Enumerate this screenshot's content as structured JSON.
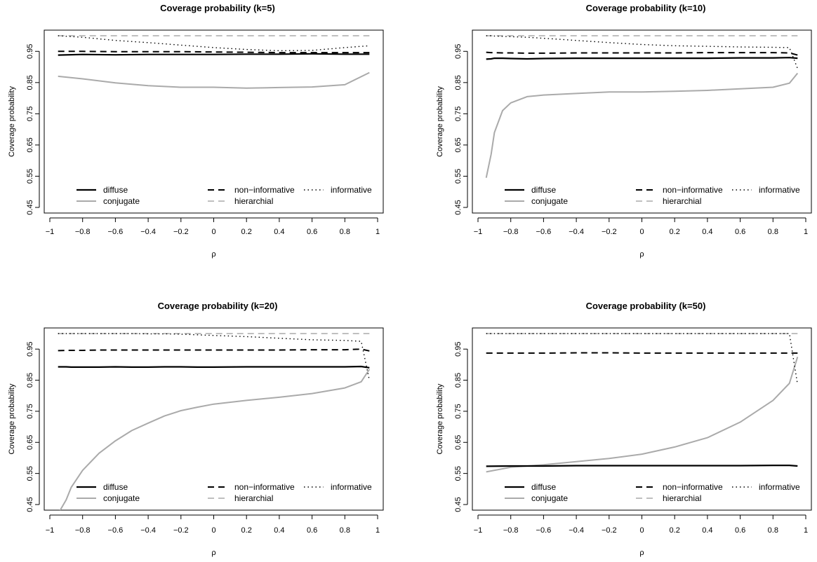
{
  "figure": {
    "background": "#ffffff"
  },
  "chart_data": [
    {
      "type": "line",
      "title": "Coverage probability (k=5)",
      "xlabel": "ρ",
      "ylabel": "Coverage probability",
      "xlim": [
        -1,
        1
      ],
      "ylim": [
        0.45,
        1.0
      ],
      "xticks": [
        "-1",
        "-0.8",
        "-0.6",
        "-0.4",
        "-0.2",
        "0",
        "0.2",
        "0.4",
        "0.6",
        "0.8",
        "1"
      ],
      "yticks": [
        "0.45",
        "0.55",
        "0.65",
        "0.75",
        "0.85",
        "0.95"
      ],
      "x": [
        -0.95,
        -0.8,
        -0.6,
        -0.4,
        -0.2,
        0,
        0.2,
        0.4,
        0.6,
        0.8,
        0.95
      ],
      "grid": false,
      "legend_position": "bottom-left",
      "series": [
        {
          "name": "diffuse",
          "style": "solid",
          "color": "#000000",
          "width": 2.2,
          "values": [
            0.938,
            0.94,
            0.939,
            0.94,
            0.94,
            0.94,
            0.941,
            0.941,
            0.942,
            0.941,
            0.941
          ]
        },
        {
          "name": "non−informative",
          "style": "dashed",
          "color": "#000000",
          "width": 2.0,
          "values": [
            0.95,
            0.95,
            0.949,
            0.949,
            0.949,
            0.948,
            0.947,
            0.946,
            0.946,
            0.946,
            0.946
          ]
        },
        {
          "name": "informative",
          "style": "dotted",
          "color": "#000000",
          "width": 1.4,
          "values": [
            1.0,
            0.995,
            0.985,
            0.978,
            0.97,
            0.962,
            0.956,
            0.952,
            0.953,
            0.962,
            0.968
          ]
        },
        {
          "name": "conjugate",
          "style": "solid",
          "color": "#aaaaaa",
          "width": 2.0,
          "values": [
            0.87,
            0.862,
            0.849,
            0.84,
            0.835,
            0.835,
            0.832,
            0.834,
            0.836,
            0.843,
            0.882
          ]
        },
        {
          "name": "hierarchial",
          "style": "dashed",
          "color": "#aaaaaa",
          "width": 1.6,
          "values": [
            1.0,
            1.0,
            1.0,
            1.0,
            1.0,
            1.0,
            1.0,
            1.0,
            1.0,
            1.0,
            1.0
          ]
        }
      ]
    },
    {
      "type": "line",
      "title": "Coverage probability (k=10)",
      "xlabel": "ρ",
      "ylabel": "Coverage probability",
      "xlim": [
        -1,
        1
      ],
      "ylim": [
        0.45,
        1.0
      ],
      "xticks": [
        "-1",
        "-0.8",
        "-0.6",
        "-0.4",
        "-0.2",
        "0",
        "0.2",
        "0.4",
        "0.6",
        "0.8",
        "1"
      ],
      "yticks": [
        "0.45",
        "0.55",
        "0.65",
        "0.75",
        "0.85",
        "0.95"
      ],
      "x": [
        -0.95,
        -0.92,
        -0.9,
        -0.85,
        -0.8,
        -0.7,
        -0.6,
        -0.4,
        -0.2,
        0,
        0.2,
        0.4,
        0.6,
        0.8,
        0.9,
        0.95
      ],
      "grid": false,
      "legend_position": "bottom-left",
      "series": [
        {
          "name": "diffuse",
          "style": "solid",
          "color": "#000000",
          "width": 2.2,
          "values": [
            0.925,
            0.926,
            0.928,
            0.928,
            0.927,
            0.926,
            0.927,
            0.928,
            0.928,
            0.928,
            0.928,
            0.928,
            0.929,
            0.929,
            0.93,
            0.928
          ]
        },
        {
          "name": "non−informative",
          "style": "dashed",
          "color": "#000000",
          "width": 2.0,
          "values": [
            0.947,
            0.946,
            0.946,
            0.945,
            0.945,
            0.944,
            0.944,
            0.945,
            0.945,
            0.945,
            0.945,
            0.946,
            0.946,
            0.946,
            0.945,
            0.938
          ]
        },
        {
          "name": "informative",
          "style": "dotted",
          "color": "#000000",
          "width": 1.4,
          "values": [
            1.0,
            1.0,
            0.999,
            0.998,
            0.997,
            0.995,
            0.992,
            0.985,
            0.978,
            0.972,
            0.968,
            0.966,
            0.964,
            0.963,
            0.962,
            0.895
          ]
        },
        {
          "name": "conjugate",
          "style": "solid",
          "color": "#aaaaaa",
          "width": 2.0,
          "values": [
            0.545,
            0.62,
            0.69,
            0.76,
            0.785,
            0.805,
            0.81,
            0.815,
            0.82,
            0.82,
            0.822,
            0.825,
            0.83,
            0.835,
            0.848,
            0.88
          ]
        },
        {
          "name": "hierarchial",
          "style": "dashed",
          "color": "#aaaaaa",
          "width": 1.6,
          "values": [
            1.0,
            1.0,
            1.0,
            1.0,
            1.0,
            1.0,
            1.0,
            1.0,
            1.0,
            1.0,
            1.0,
            1.0,
            1.0,
            1.0,
            1.0,
            1.0
          ]
        }
      ]
    },
    {
      "type": "line",
      "title": "Coverage probability (k=20)",
      "xlabel": "ρ",
      "ylabel": "Coverage probability",
      "xlim": [
        -1,
        1
      ],
      "ylim": [
        0.45,
        1.0
      ],
      "xticks": [
        "-1",
        "-0.8",
        "-0.6",
        "-0.4",
        "-0.2",
        "0",
        "0.2",
        "0.4",
        "0.6",
        "0.8",
        "1"
      ],
      "yticks": [
        "0.45",
        "0.55",
        "0.65",
        "0.75",
        "0.85",
        "0.95"
      ],
      "x": [
        -0.95,
        -0.9,
        -0.87,
        -0.8,
        -0.7,
        -0.6,
        -0.5,
        -0.4,
        -0.3,
        -0.2,
        -0.1,
        0,
        0.2,
        0.4,
        0.6,
        0.8,
        0.9,
        0.95
      ],
      "grid": false,
      "legend_position": "bottom-left",
      "series": [
        {
          "name": "diffuse",
          "style": "solid",
          "color": "#000000",
          "width": 2.2,
          "values": [
            0.893,
            0.893,
            0.892,
            0.892,
            0.892,
            0.893,
            0.892,
            0.892,
            0.893,
            0.893,
            0.892,
            0.892,
            0.893,
            0.893,
            0.893,
            0.893,
            0.894,
            0.89
          ]
        },
        {
          "name": "non−informative",
          "style": "dashed",
          "color": "#000000",
          "width": 2.0,
          "values": [
            0.945,
            0.946,
            0.946,
            0.946,
            0.947,
            0.947,
            0.947,
            0.947,
            0.947,
            0.947,
            0.947,
            0.947,
            0.947,
            0.947,
            0.948,
            0.948,
            0.95,
            0.944
          ]
        },
        {
          "name": "informative",
          "style": "dotted",
          "color": "#000000",
          "width": 1.4,
          "values": [
            1.0,
            1.0,
            1.0,
            1.0,
            1.0,
            1.0,
            1.0,
            0.999,
            0.999,
            0.998,
            0.996,
            0.994,
            0.99,
            0.985,
            0.98,
            0.978,
            0.975,
            0.85
          ]
        },
        {
          "name": "conjugate",
          "style": "solid",
          "color": "#aaaaaa",
          "width": 2.0,
          "values": [
            0.42,
            0.465,
            0.505,
            0.56,
            0.615,
            0.655,
            0.688,
            0.712,
            0.735,
            0.752,
            0.763,
            0.773,
            0.785,
            0.795,
            0.807,
            0.825,
            0.845,
            0.885
          ]
        },
        {
          "name": "hierarchial",
          "style": "dashed",
          "color": "#aaaaaa",
          "width": 1.6,
          "values": [
            1.0,
            1.0,
            1.0,
            1.0,
            1.0,
            1.0,
            1.0,
            1.0,
            1.0,
            1.0,
            1.0,
            1.0,
            1.0,
            1.0,
            1.0,
            1.0,
            1.0,
            1.0
          ]
        }
      ]
    },
    {
      "type": "line",
      "title": "Coverage probability (k=50)",
      "xlabel": "ρ",
      "ylabel": "Coverage probability",
      "xlim": [
        -1,
        1
      ],
      "ylim": [
        0.45,
        1.0
      ],
      "xticks": [
        "-1",
        "-0.8",
        "-0.6",
        "-0.4",
        "-0.2",
        "0",
        "0.2",
        "0.4",
        "0.6",
        "0.8",
        "1"
      ],
      "yticks": [
        "0.45",
        "0.55",
        "0.65",
        "0.75",
        "0.85",
        "0.95"
      ],
      "x": [
        -0.95,
        -0.8,
        -0.6,
        -0.4,
        -0.2,
        0,
        0.2,
        0.4,
        0.6,
        0.8,
        0.9,
        0.95
      ],
      "grid": false,
      "legend_position": "bottom-left",
      "series": [
        {
          "name": "diffuse",
          "style": "solid",
          "color": "#000000",
          "width": 2.2,
          "values": [
            0.573,
            0.574,
            0.574,
            0.575,
            0.575,
            0.575,
            0.575,
            0.575,
            0.575,
            0.576,
            0.576,
            0.574
          ]
        },
        {
          "name": "non−informative",
          "style": "dashed",
          "color": "#000000",
          "width": 2.0,
          "values": [
            0.937,
            0.937,
            0.937,
            0.938,
            0.938,
            0.937,
            0.937,
            0.937,
            0.937,
            0.937,
            0.937,
            0.937
          ]
        },
        {
          "name": "informative",
          "style": "dotted",
          "color": "#000000",
          "width": 1.4,
          "values": [
            1.0,
            1.0,
            1.0,
            1.0,
            1.0,
            1.0,
            1.0,
            1.0,
            1.0,
            1.0,
            1.0,
            0.836
          ]
        },
        {
          "name": "conjugate",
          "style": "solid",
          "color": "#aaaaaa",
          "width": 2.0,
          "values": [
            0.555,
            0.57,
            0.578,
            0.588,
            0.598,
            0.612,
            0.635,
            0.665,
            0.715,
            0.785,
            0.84,
            0.925
          ]
        },
        {
          "name": "hierarchial",
          "style": "dashed",
          "color": "#aaaaaa",
          "width": 1.6,
          "values": [
            1.0,
            1.0,
            1.0,
            1.0,
            1.0,
            1.0,
            1.0,
            1.0,
            1.0,
            1.0,
            1.0,
            1.0
          ]
        }
      ]
    }
  ]
}
